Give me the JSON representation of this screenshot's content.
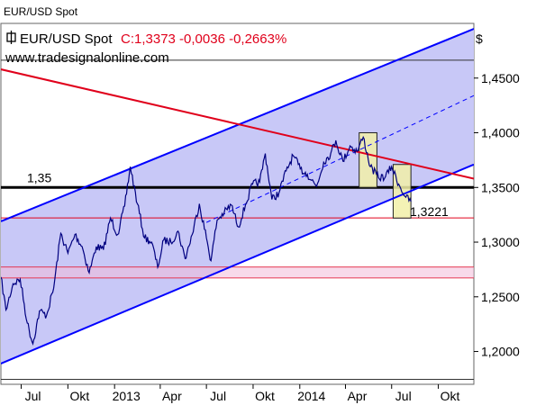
{
  "window_title": "EUR/USD Spot",
  "header": {
    "instrument": "EUR/USD Spot",
    "quote": "C:1,3373 -0,0036 -0,2663%",
    "website": "www.tradesignalonline.com",
    "currency_symbol": "$",
    "quote_color": "#e0001b"
  },
  "chart_data": {
    "type": "line",
    "title": "EUR/USD Spot",
    "x_tick_labels": [
      "Jul",
      "Okt",
      "2013",
      "Apr",
      "Jul",
      "Okt",
      "2014",
      "Apr",
      "Jul",
      "Okt"
    ],
    "y_tick_labels": [
      "1,4500",
      "1,4000",
      "1,3500",
      "1,3000",
      "1,2500",
      "1,2000"
    ],
    "y_ticks": [
      1.45,
      1.4,
      1.35,
      1.3,
      1.25,
      1.2
    ],
    "ylim": [
      1.17,
      1.5
    ],
    "xlim": [
      "2012-05-22",
      "2014-12-10"
    ],
    "grid": false,
    "series": [
      {
        "name": "EUR/USD Spot",
        "color": "#000080",
        "points": [
          [
            "2012-05-22",
            1.268
          ],
          [
            "2012-06-01",
            1.238
          ],
          [
            "2012-06-15",
            1.262
          ],
          [
            "2012-06-29",
            1.266
          ],
          [
            "2012-07-13",
            1.226
          ],
          [
            "2012-07-24",
            1.207
          ],
          [
            "2012-08-06",
            1.237
          ],
          [
            "2012-08-20",
            1.233
          ],
          [
            "2012-09-03",
            1.258
          ],
          [
            "2012-09-17",
            1.308
          ],
          [
            "2012-10-01",
            1.29
          ],
          [
            "2012-10-15",
            1.307
          ],
          [
            "2012-10-29",
            1.296
          ],
          [
            "2012-11-12",
            1.272
          ],
          [
            "2012-11-26",
            1.296
          ],
          [
            "2012-12-10",
            1.293
          ],
          [
            "2012-12-24",
            1.322
          ],
          [
            "2013-01-07",
            1.307
          ],
          [
            "2013-01-21",
            1.333
          ],
          [
            "2013-02-01",
            1.369
          ],
          [
            "2013-02-15",
            1.335
          ],
          [
            "2013-03-01",
            1.304
          ],
          [
            "2013-03-15",
            1.3
          ],
          [
            "2013-03-27",
            1.277
          ],
          [
            "2013-04-08",
            1.302
          ],
          [
            "2013-04-22",
            1.3
          ],
          [
            "2013-05-06",
            1.31
          ],
          [
            "2013-05-20",
            1.285
          ],
          [
            "2013-06-03",
            1.307
          ],
          [
            "2013-06-17",
            1.335
          ],
          [
            "2013-07-01",
            1.304
          ],
          [
            "2013-07-10",
            1.283
          ],
          [
            "2013-07-22",
            1.32
          ],
          [
            "2013-08-05",
            1.327
          ],
          [
            "2013-08-19",
            1.334
          ],
          [
            "2013-09-02",
            1.314
          ],
          [
            "2013-09-16",
            1.334
          ],
          [
            "2013-09-30",
            1.353
          ],
          [
            "2013-10-14",
            1.355
          ],
          [
            "2013-10-25",
            1.381
          ],
          [
            "2013-11-07",
            1.339
          ],
          [
            "2013-11-21",
            1.345
          ],
          [
            "2013-12-05",
            1.365
          ],
          [
            "2013-12-19",
            1.379
          ],
          [
            "2014-01-02",
            1.367
          ],
          [
            "2014-01-16",
            1.362
          ],
          [
            "2014-02-03",
            1.351
          ],
          [
            "2014-02-17",
            1.373
          ],
          [
            "2014-03-03",
            1.381
          ],
          [
            "2014-03-13",
            1.393
          ],
          [
            "2014-03-27",
            1.374
          ],
          [
            "2014-04-10",
            1.388
          ],
          [
            "2014-04-24",
            1.383
          ],
          [
            "2014-05-06",
            1.396
          ],
          [
            "2014-05-20",
            1.369
          ],
          [
            "2014-06-05",
            1.359
          ],
          [
            "2014-06-19",
            1.36
          ],
          [
            "2014-07-01",
            1.369
          ],
          [
            "2014-07-15",
            1.353
          ],
          [
            "2014-07-29",
            1.341
          ],
          [
            "2014-08-08",
            1.337
          ]
        ]
      }
    ],
    "annotations": [
      {
        "label": "1,35",
        "kind": "horizontal_line",
        "y": 1.35,
        "color": "#000000"
      },
      {
        "label": "1,3221",
        "kind": "horizontal_line",
        "y": 1.3221,
        "color": "#e0001b"
      },
      {
        "label": "",
        "kind": "horizontal_line",
        "y": 1.2772,
        "color": "#e0001b"
      },
      {
        "label": "",
        "kind": "horizontal_line",
        "y": 1.2673,
        "color": "#e0001b"
      },
      {
        "label": "",
        "kind": "horizontal_line",
        "y": 1.4664,
        "color": "#333333"
      },
      {
        "label": "",
        "kind": "horizontal_line",
        "y": 1.1745,
        "color": "#333333"
      },
      {
        "label": "",
        "kind": "trendline_upper",
        "from": [
          "2012-05-22",
          1.319
        ],
        "to": [
          "2014-12-10",
          1.495
        ],
        "color": "#0000ff"
      },
      {
        "label": "",
        "kind": "trendline_lower",
        "from": [
          "2012-05-22",
          1.189
        ],
        "to": [
          "2014-12-10",
          1.371
        ],
        "color": "#0000ff"
      },
      {
        "label": "",
        "kind": "trendline_mid",
        "from": [
          "2013-07-01",
          1.318
        ],
        "to": [
          "2014-12-10",
          1.434
        ],
        "color": "#0000ff",
        "style": "dashed"
      },
      {
        "label": "",
        "kind": "resistance_line",
        "from": [
          "2012-05-22",
          1.458
        ],
        "to": [
          "2014-12-10",
          1.358
        ],
        "color": "#e0001b"
      },
      {
        "label": "",
        "kind": "highlight_box",
        "from": [
          "2014-04-28",
          1.4
        ],
        "to": [
          "2014-06-02",
          1.35
        ],
        "color": "#f2f0a8"
      },
      {
        "label": "",
        "kind": "highlight_box",
        "from": [
          "2014-07-04",
          1.371
        ],
        "to": [
          "2014-08-08",
          1.322
        ],
        "color": "#f2f0a8"
      }
    ]
  }
}
